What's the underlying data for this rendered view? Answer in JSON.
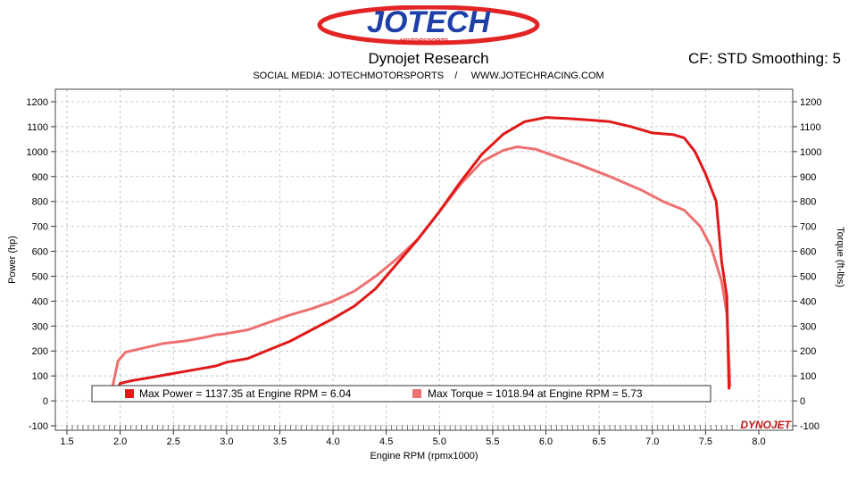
{
  "header": {
    "logo_text": "JOTECH",
    "logo_subtext": "MOTORSPORTS",
    "title": "Dynojet Research",
    "cf_text": "CF: STD Smoothing: 5",
    "subtitle": "SOCIAL MEDIA: JOTECHMOTORSPORTS    /     WWW.JOTECHRACING.COM",
    "brand_mark": "DYNOJET"
  },
  "colors": {
    "power": "#e01919",
    "torque": "#ee7070",
    "grid": "#c8c8c8",
    "logo_red": "#e32424",
    "logo_blue": "#1f3fa8"
  },
  "chart_data": {
    "type": "line",
    "xlabel": "Engine RPM (rpmx1000)",
    "ylabel_left": "Power (hp)",
    "ylabel_right": "Torque (ft-lbs)",
    "xlim": [
      1.5,
      8.0
    ],
    "ylim": [
      -100,
      1200
    ],
    "x_ticks": [
      "1.5",
      "2.0",
      "2.5",
      "3.0",
      "3.5",
      "4.0",
      "4.5",
      "5.0",
      "5.5",
      "6.0",
      "6.5",
      "7.0",
      "7.5",
      "8.0"
    ],
    "y_ticks": [
      "-100",
      "0",
      "100",
      "200",
      "300",
      "400",
      "500",
      "600",
      "700",
      "800",
      "900",
      "1000",
      "1100",
      "1200"
    ],
    "grid": true,
    "legend_position": "bottom",
    "series": [
      {
        "name": "Max Power",
        "points": [
          [
            1.95,
            20
          ],
          [
            2.0,
            70
          ],
          [
            2.1,
            80
          ],
          [
            2.3,
            95
          ],
          [
            2.5,
            110
          ],
          [
            2.7,
            125
          ],
          [
            2.9,
            140
          ],
          [
            3.0,
            155
          ],
          [
            3.2,
            170
          ],
          [
            3.4,
            205
          ],
          [
            3.6,
            240
          ],
          [
            3.8,
            285
          ],
          [
            4.0,
            330
          ],
          [
            4.2,
            380
          ],
          [
            4.4,
            450
          ],
          [
            4.6,
            550
          ],
          [
            4.8,
            650
          ],
          [
            5.0,
            760
          ],
          [
            5.2,
            880
          ],
          [
            5.4,
            990
          ],
          [
            5.6,
            1070
          ],
          [
            5.8,
            1120
          ],
          [
            6.0,
            1137
          ],
          [
            6.2,
            1133
          ],
          [
            6.4,
            1127
          ],
          [
            6.6,
            1120
          ],
          [
            6.8,
            1100
          ],
          [
            7.0,
            1075
          ],
          [
            7.2,
            1068
          ],
          [
            7.3,
            1055
          ],
          [
            7.4,
            1000
          ],
          [
            7.5,
            910
          ],
          [
            7.6,
            800
          ],
          [
            7.65,
            560
          ],
          [
            7.7,
            420
          ],
          [
            7.72,
            50
          ]
        ]
      },
      {
        "name": "Max Torque",
        "points": [
          [
            1.93,
            60
          ],
          [
            1.98,
            160
          ],
          [
            2.05,
            195
          ],
          [
            2.2,
            210
          ],
          [
            2.4,
            230
          ],
          [
            2.6,
            240
          ],
          [
            2.8,
            255
          ],
          [
            2.9,
            265
          ],
          [
            3.0,
            270
          ],
          [
            3.2,
            285
          ],
          [
            3.4,
            315
          ],
          [
            3.6,
            345
          ],
          [
            3.8,
            370
          ],
          [
            4.0,
            400
          ],
          [
            4.2,
            440
          ],
          [
            4.4,
            500
          ],
          [
            4.6,
            570
          ],
          [
            4.8,
            650
          ],
          [
            5.0,
            760
          ],
          [
            5.2,
            870
          ],
          [
            5.4,
            960
          ],
          [
            5.6,
            1005
          ],
          [
            5.73,
            1019
          ],
          [
            5.9,
            1010
          ],
          [
            6.1,
            980
          ],
          [
            6.3,
            950
          ],
          [
            6.6,
            900
          ],
          [
            6.9,
            845
          ],
          [
            7.1,
            800
          ],
          [
            7.3,
            765
          ],
          [
            7.45,
            700
          ],
          [
            7.55,
            620
          ],
          [
            7.65,
            480
          ],
          [
            7.7,
            350
          ],
          [
            7.73,
            60
          ]
        ]
      }
    ],
    "annotations": {
      "power_label": "Max Power = 1137.35 at Engine RPM = 6.04",
      "torque_label": "Max Torque = 1018.94 at Engine RPM = 5.73"
    }
  }
}
